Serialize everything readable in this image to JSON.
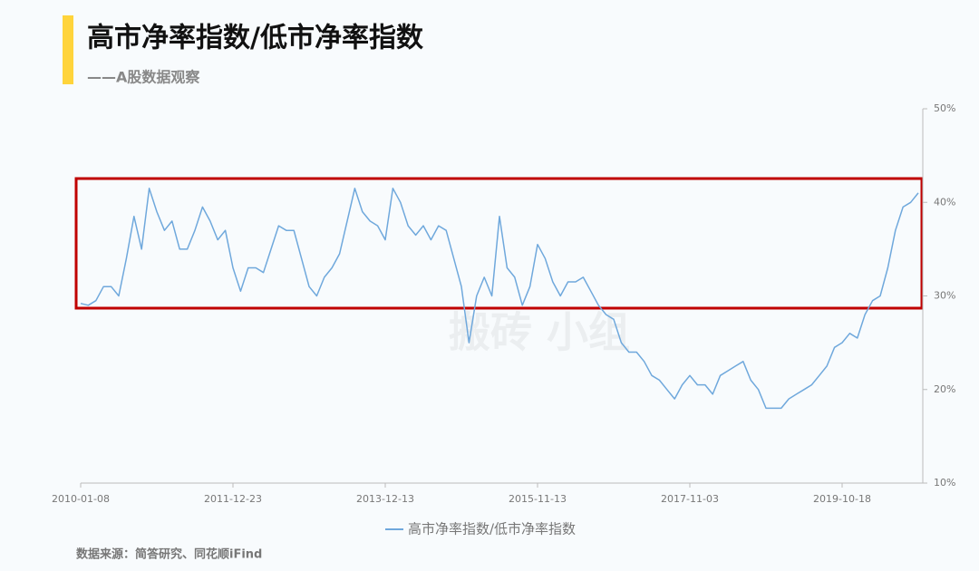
{
  "chart_data": {
    "type": "line",
    "title": "高市净率指数/低市净率指数",
    "subtitle": "——A股数据观察",
    "source": "数据来源：简答研究、同花顺iFind",
    "watermark": "搬砖 小组",
    "categories": [
      "2010-01-08",
      null,
      null,
      null,
      null,
      null,
      null,
      null,
      null,
      null,
      null,
      null,
      null,
      null,
      null,
      null,
      null,
      null,
      null,
      null,
      "2011-12-23",
      null,
      null,
      null,
      null,
      null,
      null,
      null,
      null,
      null,
      null,
      null,
      null,
      null,
      null,
      null,
      null,
      null,
      null,
      null,
      "2013-12-13",
      null,
      null,
      null,
      null,
      null,
      null,
      null,
      null,
      null,
      null,
      null,
      null,
      null,
      null,
      null,
      null,
      null,
      null,
      null,
      "2015-11-13",
      null,
      null,
      null,
      null,
      null,
      null,
      null,
      null,
      null,
      null,
      null,
      null,
      null,
      null,
      null,
      null,
      null,
      null,
      null,
      "2017-11-03",
      null,
      null,
      null,
      null,
      null,
      null,
      null,
      null,
      null,
      null,
      null,
      null,
      null,
      null,
      null,
      null,
      null,
      null,
      null,
      "2019-10-18",
      null,
      null,
      null,
      null,
      null,
      null,
      null,
      null,
      null,
      null
    ],
    "series": [
      {
        "name": "高市净率指数/低市净率指数",
        "color": "#6fa8dc",
        "values": [
          29.2,
          29,
          29.5,
          31,
          31,
          30,
          34,
          38.5,
          35,
          41.5,
          39,
          37,
          38,
          35,
          35,
          37,
          39.5,
          38,
          36,
          37,
          33,
          30.5,
          33,
          33,
          32.5,
          35,
          37.5,
          37,
          37,
          34,
          31,
          30,
          32,
          33,
          34.5,
          38,
          41.5,
          39,
          38,
          37.5,
          36,
          41.5,
          40,
          37.5,
          36.5,
          37.5,
          36,
          37.5,
          37,
          34,
          31,
          25,
          30,
          32,
          30,
          38.5,
          33,
          32,
          29,
          31,
          35.5,
          34,
          31.5,
          30,
          31.5,
          31.5,
          32,
          30.5,
          29,
          28,
          27.5,
          25,
          24,
          24,
          23,
          21.5,
          21,
          20,
          19,
          20.5,
          21.5,
          20.5,
          20.5,
          19.5,
          21.5,
          22,
          22.5,
          23,
          21,
          20,
          18,
          18,
          18,
          19,
          19.5,
          20,
          20.5,
          21.5,
          22.5,
          24.5,
          25,
          26,
          25.5,
          28,
          29.5,
          30,
          33,
          37,
          39.5,
          40,
          41
        ]
      }
    ],
    "ylim": [
      10,
      50
    ],
    "yticks": [
      {
        "value": 10,
        "label": "10%"
      },
      {
        "value": 20,
        "label": "20%"
      },
      {
        "value": 30,
        "label": "30%"
      },
      {
        "value": 40,
        "label": "40%"
      },
      {
        "value": 50,
        "label": "50%"
      }
    ],
    "yaxis_side": "right",
    "grid": false,
    "legend": "bottom"
  }
}
